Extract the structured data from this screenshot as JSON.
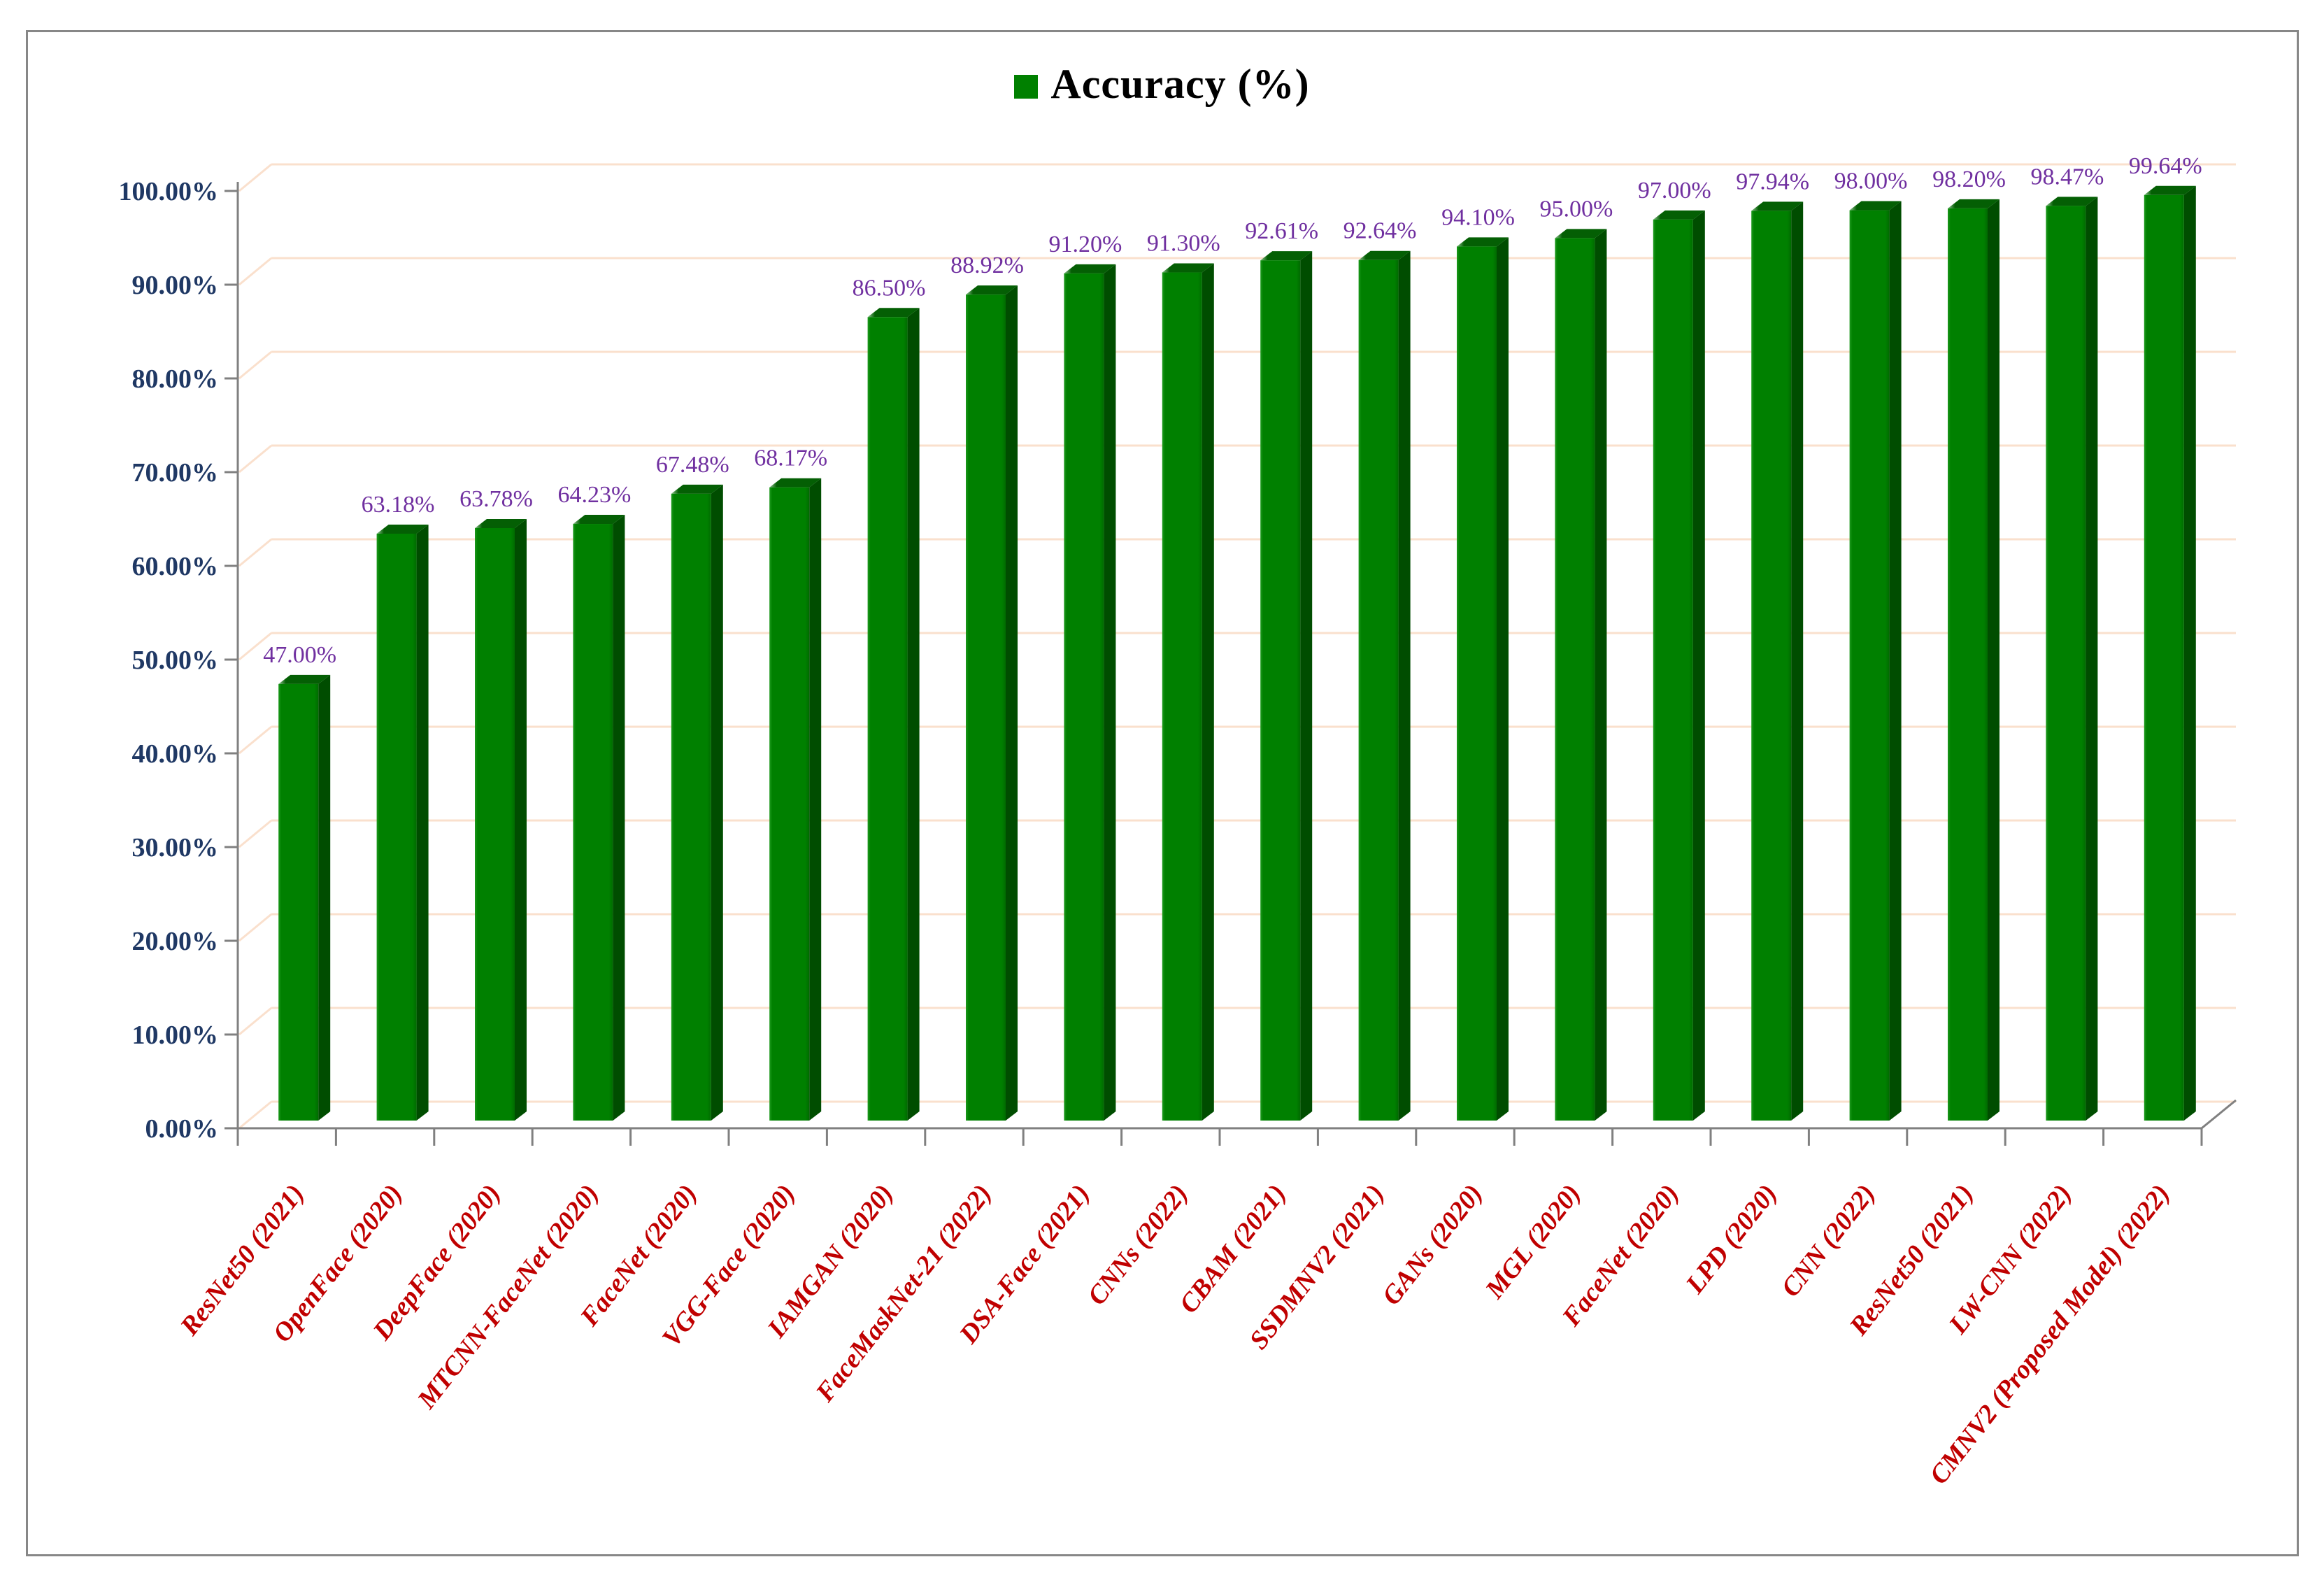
{
  "legend": {
    "label": "Accuracy (%)",
    "swatch_color": "#008000"
  },
  "chart_data": {
    "type": "bar",
    "title": "Accuracy (%)",
    "xlabel": "",
    "ylabel": "",
    "ylim": [
      0,
      100
    ],
    "grid": true,
    "legend_position": "top-center",
    "categories": [
      "ResNet50 (2021)",
      "OpenFace (2020)",
      "DeepFace (2020)",
      "MTCNN-FaceNet (2020)",
      "FaceNet (2020)",
      "VGG-Face (2020)",
      "IAMGAN (2020)",
      "FaceMaskNet-21 (2022)",
      "DSA-Face (2021)",
      "CNNs (2022)",
      "CBAM (2021)",
      "SSDMNV2 (2021)",
      "GANs (2020)",
      "MGL (2020)",
      "FaceNet (2020)",
      "LPD (2020)",
      "CNN (2022)",
      "ResNet50 (2021)",
      "LW-CNN (2022)",
      "CMNV2 (Proposed  Model) (2022)"
    ],
    "values": [
      47.0,
      63.18,
      63.78,
      64.23,
      67.48,
      68.17,
      86.5,
      88.92,
      91.2,
      91.3,
      92.61,
      92.64,
      94.1,
      95.0,
      97.0,
      97.94,
      98.0,
      98.2,
      98.47,
      99.64
    ],
    "value_labels": [
      "47.00%",
      "63.18%",
      "63.78%",
      "64.23%",
      "67.48%",
      "68.17%",
      "86.50%",
      "88.92%",
      "91.20%",
      "91.30%",
      "92.61%",
      "92.64%",
      "94.10%",
      "95.00%",
      "97.00%",
      "97.94%",
      "98.00%",
      "98.20%",
      "98.47%",
      "99.64%"
    ],
    "y_ticks": [
      "0.00%",
      "10.00%",
      "20.00%",
      "30.00%",
      "40.00%",
      "50.00%",
      "60.00%",
      "70.00%",
      "80.00%",
      "90.00%",
      "100.00%"
    ],
    "colors": {
      "bar_front": "#008000",
      "bar_front_light": "#1e9a1e",
      "bar_front_dark": "#006b00",
      "bar_side": "#004d00",
      "bar_top": "#045f04",
      "bar_top_highlight": "#8fc48f",
      "value_label": "#7030A0",
      "category_label": "#C00000",
      "y_tick_label": "#1F3864",
      "gridline": "#FAE0CD",
      "axis": "#808080",
      "legend_text": "#000000"
    }
  }
}
